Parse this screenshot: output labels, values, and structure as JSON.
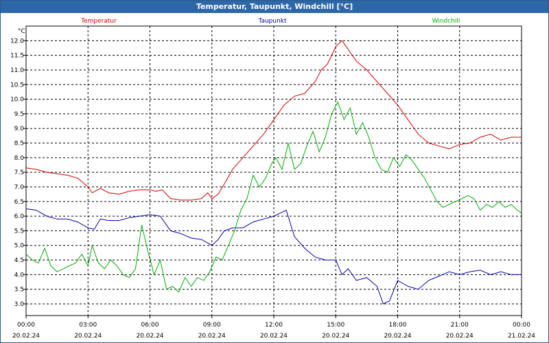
{
  "window": {
    "title": "Temperatur, Taupunkt, Windchill [°C]"
  },
  "chart_data": {
    "type": "line",
    "ylabel": "°C",
    "ylim": [
      2.6,
      12.5
    ],
    "xlim": [
      0,
      24
    ],
    "grid": true,
    "yticks": [
      "3.0",
      "3.5",
      "4.0",
      "4.5",
      "5.0",
      "5.5",
      "6.0",
      "6.5",
      "7.0",
      "7.5",
      "8.0",
      "8.5",
      "9.0",
      "9.5",
      "10.0",
      "10.5",
      "11.0",
      "11.5",
      "12.0"
    ],
    "xticks": [
      {
        "time": "00:00",
        "date": "20.02.24",
        "hour": 0
      },
      {
        "time": "03:00",
        "date": "20.02.24",
        "hour": 3
      },
      {
        "time": "06:00",
        "date": "20.02.24",
        "hour": 6
      },
      {
        "time": "09:00",
        "date": "20.02.24",
        "hour": 9
      },
      {
        "time": "12:00",
        "date": "20.02.24",
        "hour": 12
      },
      {
        "time": "15:00",
        "date": "20.02.24",
        "hour": 15
      },
      {
        "time": "18:00",
        "date": "20.02.24",
        "hour": 18
      },
      {
        "time": "21:00",
        "date": "20.02.24",
        "hour": 21
      },
      {
        "time": "00:00",
        "date": "21.02.24",
        "hour": 24
      }
    ],
    "legend_placement": "top",
    "series": [
      {
        "name": "Temperatur",
        "color": "#cc0000",
        "points": [
          [
            0,
            7.65
          ],
          [
            0.5,
            7.6
          ],
          [
            1,
            7.5
          ],
          [
            1.5,
            7.45
          ],
          [
            2,
            7.4
          ],
          [
            2.5,
            7.3
          ],
          [
            3,
            7.0
          ],
          [
            3.2,
            6.8
          ],
          [
            3.6,
            6.95
          ],
          [
            4,
            6.8
          ],
          [
            4.5,
            6.75
          ],
          [
            5,
            6.85
          ],
          [
            5.5,
            6.9
          ],
          [
            6,
            6.9
          ],
          [
            6.3,
            6.85
          ],
          [
            6.6,
            6.9
          ],
          [
            7,
            6.6
          ],
          [
            7.5,
            6.55
          ],
          [
            8,
            6.55
          ],
          [
            8.5,
            6.6
          ],
          [
            8.8,
            6.8
          ],
          [
            9,
            6.6
          ],
          [
            9.3,
            6.75
          ],
          [
            9.6,
            7.1
          ],
          [
            10,
            7.6
          ],
          [
            10.5,
            8.0
          ],
          [
            11,
            8.4
          ],
          [
            11.5,
            8.8
          ],
          [
            12,
            9.3
          ],
          [
            12.5,
            9.8
          ],
          [
            13,
            10.1
          ],
          [
            13.5,
            10.2
          ],
          [
            14,
            10.6
          ],
          [
            14.3,
            11.0
          ],
          [
            14.6,
            11.2
          ],
          [
            15,
            11.8
          ],
          [
            15.3,
            12.0
          ],
          [
            15.6,
            11.7
          ],
          [
            16,
            11.3
          ],
          [
            16.5,
            11.0
          ],
          [
            17,
            10.6
          ],
          [
            17.5,
            10.2
          ],
          [
            18,
            9.8
          ],
          [
            18.5,
            9.3
          ],
          [
            19,
            8.8
          ],
          [
            19.5,
            8.5
          ],
          [
            20,
            8.4
          ],
          [
            20.5,
            8.3
          ],
          [
            21,
            8.45
          ],
          [
            21.5,
            8.5
          ],
          [
            22,
            8.7
          ],
          [
            22.5,
            8.8
          ],
          [
            23,
            8.6
          ],
          [
            23.5,
            8.7
          ],
          [
            24,
            8.7
          ]
        ]
      },
      {
        "name": "Taupunkt",
        "color": "#0000aa",
        "points": [
          [
            0,
            6.25
          ],
          [
            0.5,
            6.2
          ],
          [
            1,
            6.0
          ],
          [
            1.5,
            5.9
          ],
          [
            2,
            5.9
          ],
          [
            2.5,
            5.8
          ],
          [
            3,
            5.6
          ],
          [
            3.3,
            5.55
          ],
          [
            3.6,
            5.9
          ],
          [
            4,
            5.85
          ],
          [
            4.5,
            5.85
          ],
          [
            5,
            5.95
          ],
          [
            5.5,
            6.0
          ],
          [
            6,
            6.05
          ],
          [
            6.5,
            6.0
          ],
          [
            7,
            5.5
          ],
          [
            7.5,
            5.4
          ],
          [
            8,
            5.25
          ],
          [
            8.5,
            5.2
          ],
          [
            9,
            5.0
          ],
          [
            9.3,
            5.2
          ],
          [
            9.6,
            5.5
          ],
          [
            10,
            5.6
          ],
          [
            10.5,
            5.6
          ],
          [
            11,
            5.8
          ],
          [
            11.5,
            5.9
          ],
          [
            12,
            6.0
          ],
          [
            12.3,
            6.1
          ],
          [
            12.6,
            6.2
          ],
          [
            13,
            5.3
          ],
          [
            13.5,
            4.9
          ],
          [
            14,
            4.6
          ],
          [
            14.5,
            4.5
          ],
          [
            15,
            4.5
          ],
          [
            15.3,
            4.0
          ],
          [
            15.6,
            4.2
          ],
          [
            16,
            3.8
          ],
          [
            16.5,
            3.9
          ],
          [
            17,
            3.6
          ],
          [
            17.3,
            3.0
          ],
          [
            17.6,
            3.1
          ],
          [
            18,
            3.8
          ],
          [
            18.5,
            3.6
          ],
          [
            19,
            3.5
          ],
          [
            19.5,
            3.8
          ],
          [
            20,
            3.95
          ],
          [
            20.5,
            4.1
          ],
          [
            21,
            4.0
          ],
          [
            21.5,
            4.1
          ],
          [
            22,
            4.15
          ],
          [
            22.5,
            4.0
          ],
          [
            23,
            4.1
          ],
          [
            23.5,
            4.0
          ],
          [
            24,
            4.0
          ]
        ]
      },
      {
        "name": "Windchill",
        "color": "#00aa00",
        "points": [
          [
            0,
            4.7
          ],
          [
            0.3,
            4.5
          ],
          [
            0.6,
            4.4
          ],
          [
            0.9,
            4.9
          ],
          [
            1.2,
            4.3
          ],
          [
            1.5,
            4.1
          ],
          [
            1.8,
            4.2
          ],
          [
            2.1,
            4.3
          ],
          [
            2.4,
            4.4
          ],
          [
            2.7,
            4.7
          ],
          [
            3,
            4.3
          ],
          [
            3.2,
            5.0
          ],
          [
            3.5,
            4.4
          ],
          [
            3.8,
            4.2
          ],
          [
            4.1,
            4.5
          ],
          [
            4.4,
            4.3
          ],
          [
            4.7,
            4.0
          ],
          [
            5,
            3.9
          ],
          [
            5.3,
            4.2
          ],
          [
            5.6,
            5.7
          ],
          [
            5.9,
            4.8
          ],
          [
            6.2,
            4.0
          ],
          [
            6.5,
            4.5
          ],
          [
            6.8,
            3.5
          ],
          [
            7.1,
            3.6
          ],
          [
            7.4,
            3.4
          ],
          [
            7.7,
            3.9
          ],
          [
            8,
            3.6
          ],
          [
            8.3,
            3.9
          ],
          [
            8.6,
            3.8
          ],
          [
            8.9,
            4.1
          ],
          [
            9.2,
            4.6
          ],
          [
            9.5,
            4.5
          ],
          [
            9.8,
            5.0
          ],
          [
            10.1,
            5.5
          ],
          [
            10.4,
            6.2
          ],
          [
            10.7,
            6.6
          ],
          [
            11,
            7.4
          ],
          [
            11.3,
            7.0
          ],
          [
            11.6,
            7.3
          ],
          [
            11.9,
            7.8
          ],
          [
            12.1,
            8.0
          ],
          [
            12.4,
            7.6
          ],
          [
            12.7,
            8.5
          ],
          [
            13,
            7.6
          ],
          [
            13.3,
            7.8
          ],
          [
            13.6,
            8.4
          ],
          [
            13.9,
            8.9
          ],
          [
            14.2,
            8.2
          ],
          [
            14.5,
            8.7
          ],
          [
            14.8,
            9.5
          ],
          [
            15.1,
            9.9
          ],
          [
            15.4,
            9.3
          ],
          [
            15.7,
            9.7
          ],
          [
            16,
            8.8
          ],
          [
            16.3,
            9.2
          ],
          [
            16.6,
            8.7
          ],
          [
            16.9,
            8.0
          ],
          [
            17.2,
            7.6
          ],
          [
            17.5,
            7.5
          ],
          [
            17.8,
            8.0
          ],
          [
            18.1,
            7.7
          ],
          [
            18.4,
            8.1
          ],
          [
            18.7,
            7.9
          ],
          [
            19,
            7.6
          ],
          [
            19.3,
            7.3
          ],
          [
            19.6,
            6.9
          ],
          [
            19.9,
            6.5
          ],
          [
            20.2,
            6.3
          ],
          [
            20.5,
            6.4
          ],
          [
            20.8,
            6.5
          ],
          [
            21.1,
            6.6
          ],
          [
            21.4,
            6.7
          ],
          [
            21.7,
            6.6
          ],
          [
            22,
            6.2
          ],
          [
            22.3,
            6.4
          ],
          [
            22.6,
            6.3
          ],
          [
            22.9,
            6.5
          ],
          [
            23.2,
            6.3
          ],
          [
            23.5,
            6.4
          ],
          [
            23.8,
            6.2
          ],
          [
            24,
            6.1
          ]
        ]
      }
    ]
  }
}
